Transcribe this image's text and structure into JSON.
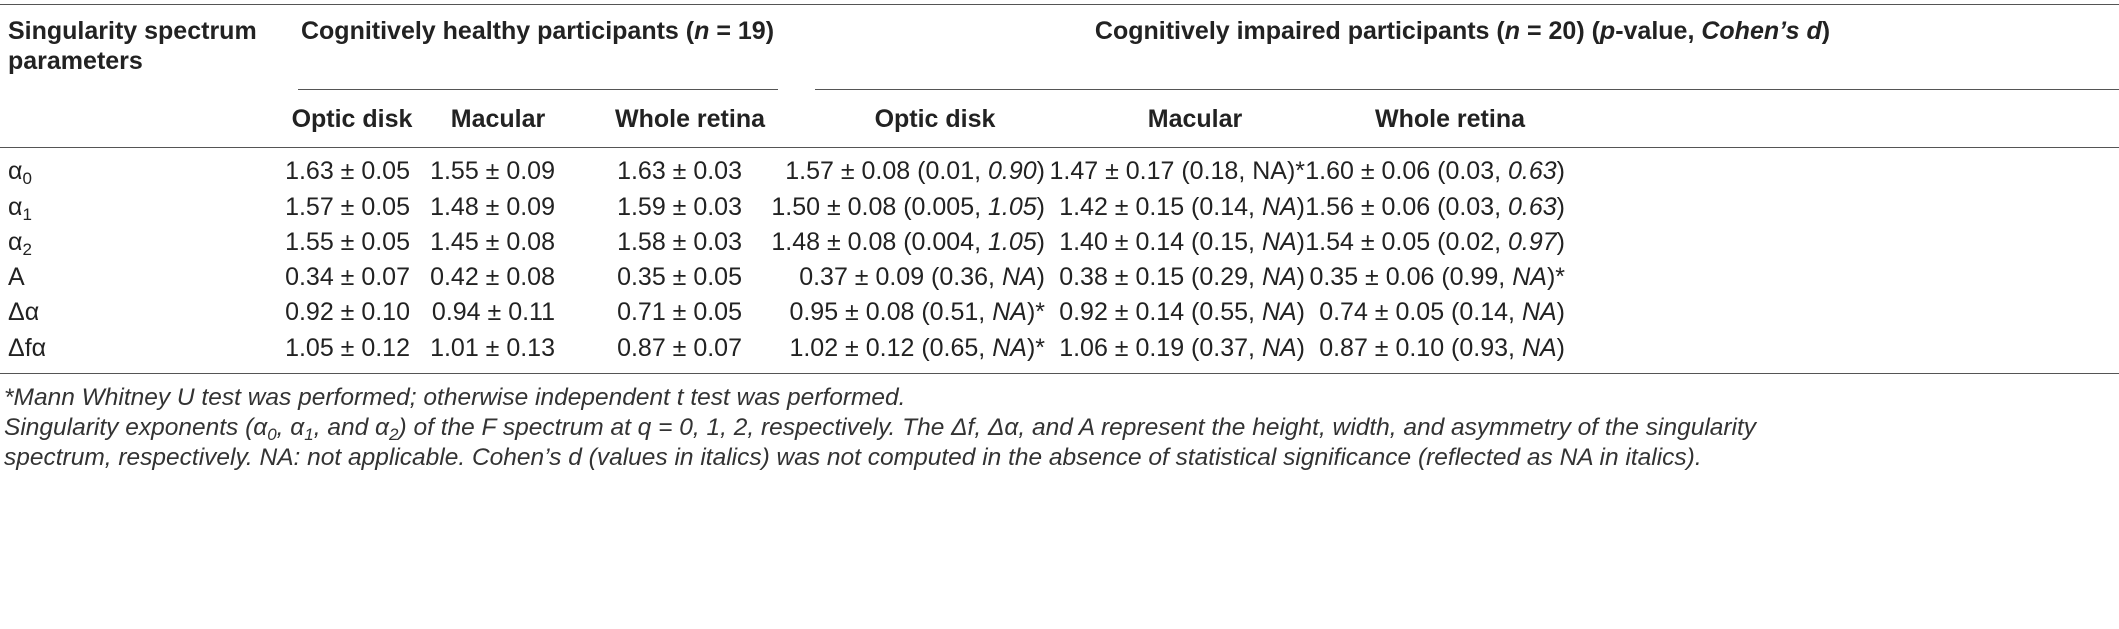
{
  "header": {
    "param_col_line1": "Singularity spectrum",
    "param_col_line2": "parameters",
    "healthy_group_prefix": "Cognitively healthy participants (",
    "healthy_group_n": "n",
    "healthy_group_suffix": " = 19)",
    "impaired_group_prefix": "Cognitively impaired participants (",
    "impaired_group_n": "n",
    "impaired_group_mid": " = 20) (",
    "impaired_group_p": "p",
    "impaired_group_mid2": "-value, ",
    "impaired_group_d": "Cohen’s d",
    "impaired_group_suffix": ")",
    "subcolumns": [
      "Optic disk",
      "Macular",
      "Whole retina"
    ]
  },
  "rows": [
    {
      "param": "α",
      "sub": "0",
      "healthy": [
        "1.63 ± 0.05",
        "1.55 ± 0.09",
        "1.63 ± 0.03"
      ],
      "impaired": [
        {
          "main": "1.57 ± 0.08 (0.01, ",
          "it": "0.90",
          "end": ")"
        },
        {
          "main": "1.47 ± 0.17 (0.18, NA)*",
          "it": "",
          "end": ""
        },
        {
          "main": "1.60 ± 0.06 (0.03, ",
          "it": "0.63",
          "end": ")"
        }
      ]
    },
    {
      "param": "α",
      "sub": "1",
      "healthy": [
        "1.57 ± 0.05",
        "1.48 ± 0.09",
        "1.59 ± 0.03"
      ],
      "impaired": [
        {
          "main": "1.50 ± 0.08 (0.005, ",
          "it": "1.05",
          "end": ")"
        },
        {
          "main": "1.42 ± 0.15 (0.14, ",
          "it": "NA",
          "end": ")"
        },
        {
          "main": "1.56 ± 0.06 (0.03, ",
          "it": "0.63",
          "end": ")"
        }
      ]
    },
    {
      "param": "α",
      "sub": "2",
      "healthy": [
        "1.55 ± 0.05",
        "1.45 ± 0.08",
        "1.58 ± 0.03"
      ],
      "impaired": [
        {
          "main": "1.48 ± 0.08 (0.004, ",
          "it": "1.05",
          "end": ")"
        },
        {
          "main": "1.40 ± 0.14 (0.15, ",
          "it": "NA",
          "end": ")"
        },
        {
          "main": "1.54 ± 0.05 (0.02, ",
          "it": "0.97",
          "end": ")"
        }
      ]
    },
    {
      "param": "A",
      "sub": "",
      "healthy": [
        "0.34 ± 0.07",
        "0.42 ± 0.08",
        "0.35 ± 0.05"
      ],
      "impaired": [
        {
          "main": "0.37 ± 0.09 (0.36, ",
          "it": "NA",
          "end": ")"
        },
        {
          "main": "0.38 ± 0.15 (0.29, ",
          "it": "NA",
          "end": ")"
        },
        {
          "main": "0.35 ± 0.06 (0.99, ",
          "it": "NA",
          "end": ")*"
        }
      ]
    },
    {
      "param": "Δα",
      "sub": "",
      "healthy": [
        "0.92 ± 0.10",
        "0.94 ± 0.11",
        "0.71 ± 0.05"
      ],
      "impaired": [
        {
          "main": "0.95 ± 0.08 (0.51, ",
          "it": "NA",
          "end": ")*"
        },
        {
          "main": "0.92 ± 0.14 (0.55, ",
          "it": "NA",
          "end": ")"
        },
        {
          "main": "0.74 ± 0.05 (0.14, ",
          "it": "NA",
          "end": ")"
        }
      ]
    },
    {
      "param": "Δfα",
      "sub": "",
      "healthy": [
        "1.05 ± 0.12",
        "1.01 ± 0.13",
        "0.87 ± 0.07"
      ],
      "impaired": [
        {
          "main": "1.02 ± 0.12 (0.65, ",
          "it": "NA",
          "end": ")*"
        },
        {
          "main": "1.06 ± 0.19 (0.37, ",
          "it": "NA",
          "end": ")"
        },
        {
          "main": "0.87 ± 0.10 (0.93, ",
          "it": "NA",
          "end": ")"
        }
      ]
    }
  ],
  "footnotes": {
    "line1": "*Mann Whitney U test was performed; otherwise independent t test was performed.",
    "line2_a": "Singularity exponents (α",
    "line2_sub0": "0",
    "line2_b": ", α",
    "line2_sub1": "1",
    "line2_c": ", and α",
    "line2_sub2": "2",
    "line2_d": ") of the F spectrum at q = 0, 1, 2, respectively. The Δf, Δα, and A represent the height, width, and asymmetry of the singularity",
    "line3": "spectrum, respectively. NA: not applicable. Cohen’s d (values in italics) was not computed in the absence of statistical significance (reflected as NA in italics)."
  }
}
